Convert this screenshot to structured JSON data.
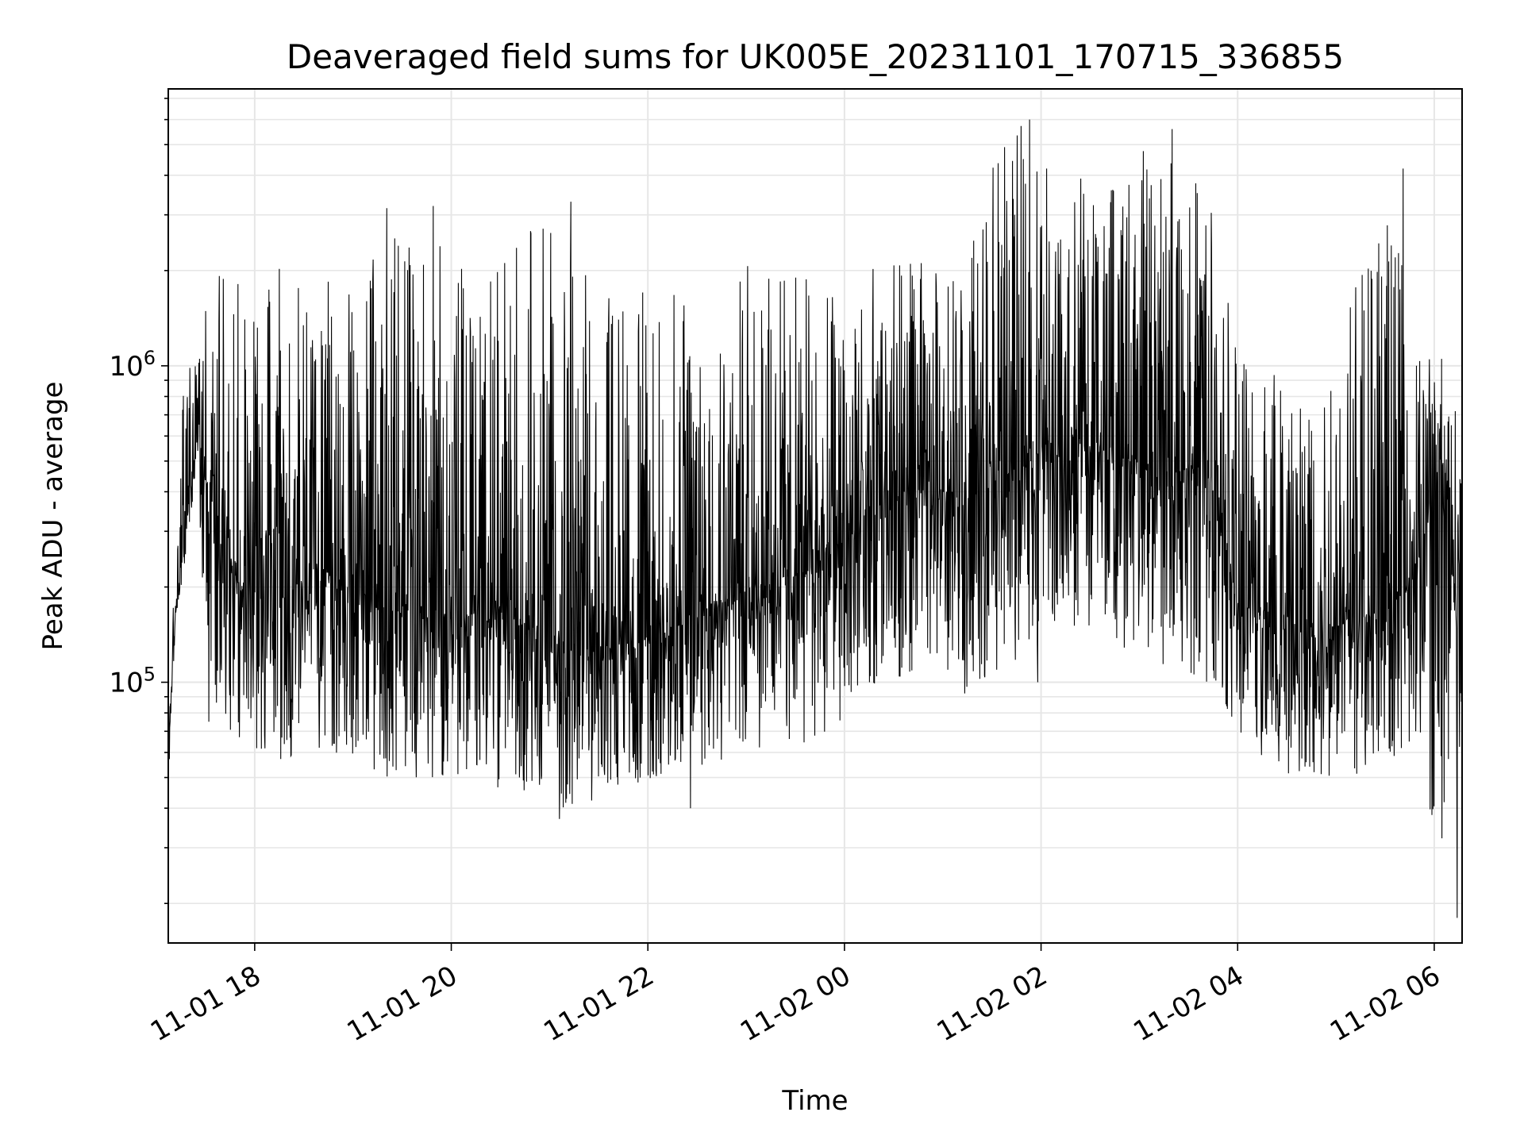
{
  "chart_data": {
    "type": "line",
    "title": "Deaveraged field sums for UK005E_20231101_170715_336855",
    "xlabel": "Time",
    "ylabel": "Peak ADU - average",
    "x_axis": {
      "kind": "datetime",
      "range": [
        "2023-11-01 17:07:15",
        "2023-11-02 06:17:00"
      ],
      "ticks": [
        {
          "value": "2023-11-01 18:00",
          "label": "11-01 18"
        },
        {
          "value": "2023-11-01 20:00",
          "label": "11-01 20"
        },
        {
          "value": "2023-11-01 22:00",
          "label": "11-01 22"
        },
        {
          "value": "2023-11-02 00:00",
          "label": "11-02 00"
        },
        {
          "value": "2023-11-02 02:00",
          "label": "11-02 02"
        },
        {
          "value": "2023-11-02 04:00",
          "label": "11-02 04"
        },
        {
          "value": "2023-11-02 06:00",
          "label": "11-02 06"
        }
      ]
    },
    "y_axis": {
      "scale": "log",
      "range": [
        15000,
        7500000
      ],
      "major_ticks": [
        {
          "value": 100000,
          "base": "10",
          "exp": "5"
        },
        {
          "value": 1000000,
          "base": "10",
          "exp": "6"
        }
      ]
    },
    "grid": true,
    "line_color": "#000000",
    "grid_color": "#e6e6e6",
    "series": [
      {
        "x": [
          "2023-11-01 17:07",
          "2023-11-01 17:12",
          "2023-11-01 17:18",
          "2023-11-01 17:25",
          "2023-11-01 17:30",
          "2023-11-01 17:38",
          "2023-11-01 17:50",
          "2023-11-01 18:10",
          "2023-11-01 18:40",
          "2023-11-01 19:00",
          "2023-11-01 19:20",
          "2023-11-01 19:50",
          "2023-11-01 20:20",
          "2023-11-01 20:50",
          "2023-11-01 21:10",
          "2023-11-01 21:40",
          "2023-11-01 22:10",
          "2023-11-01 22:40",
          "2023-11-01 23:10",
          "2023-11-01 23:40",
          "2023-11-02 00:10",
          "2023-11-02 00:40",
          "2023-11-02 01:10",
          "2023-11-02 01:40",
          "2023-11-02 02:10",
          "2023-11-02 02:40",
          "2023-11-02 03:10",
          "2023-11-02 03:40",
          "2023-11-02 04:00",
          "2023-11-02 04:30",
          "2023-11-02 05:00",
          "2023-11-02 05:30",
          "2023-11-02 05:50",
          "2023-11-02 06:05",
          "2023-11-02 06:17"
        ],
        "median": [
          60000,
          180000,
          300000,
          700000,
          450000,
          330000,
          200000,
          170000,
          230000,
          200000,
          170000,
          160000,
          160000,
          150000,
          130000,
          130000,
          140000,
          180000,
          200000,
          230000,
          310000,
          400000,
          400000,
          420000,
          620000,
          560000,
          450000,
          480000,
          180000,
          150000,
          150000,
          170000,
          210000,
          600000,
          110000
        ],
        "low": [
          45000,
          160000,
          250000,
          500000,
          90000,
          80000,
          60000,
          55000,
          60000,
          55000,
          50000,
          50000,
          47000,
          45000,
          38000,
          45000,
          50000,
          55000,
          60000,
          60000,
          90000,
          100000,
          90000,
          110000,
          150000,
          140000,
          110000,
          100000,
          60000,
          50000,
          50000,
          52000,
          60000,
          20000,
          65000
        ],
        "high": [
          95000,
          240000,
          1400000,
          1100000,
          1600000,
          2000000,
          1900000,
          2100000,
          1900000,
          1700000,
          3200000,
          2500000,
          1800000,
          3300000,
          2300000,
          1800000,
          1700000,
          1900000,
          2300000,
          1900000,
          2100000,
          2200000,
          2000000,
          6000000,
          5100000,
          3500000,
          5600000,
          4000000,
          1500000,
          1100000,
          1300000,
          4300000,
          1100000,
          1150000,
          700000
        ],
        "events": [
          {
            "x": "2023-11-01 17:32",
            "y": 75000
          },
          {
            "x": "2023-11-01 19:49",
            "y": 3200000
          },
          {
            "x": "2023-11-01 21:06",
            "y": 37000
          },
          {
            "x": "2023-11-01 21:13",
            "y": 3300000
          },
          {
            "x": "2023-11-01 22:26",
            "y": 40000
          },
          {
            "x": "2023-11-02 01:53",
            "y": 6000000
          },
          {
            "x": "2023-11-02 01:58",
            "y": 100000
          },
          {
            "x": "2023-11-02 03:20",
            "y": 5600000
          },
          {
            "x": "2023-11-02 05:41",
            "y": 4200000
          },
          {
            "x": "2023-11-02 06:14",
            "y": 18000
          }
        ]
      }
    ]
  }
}
